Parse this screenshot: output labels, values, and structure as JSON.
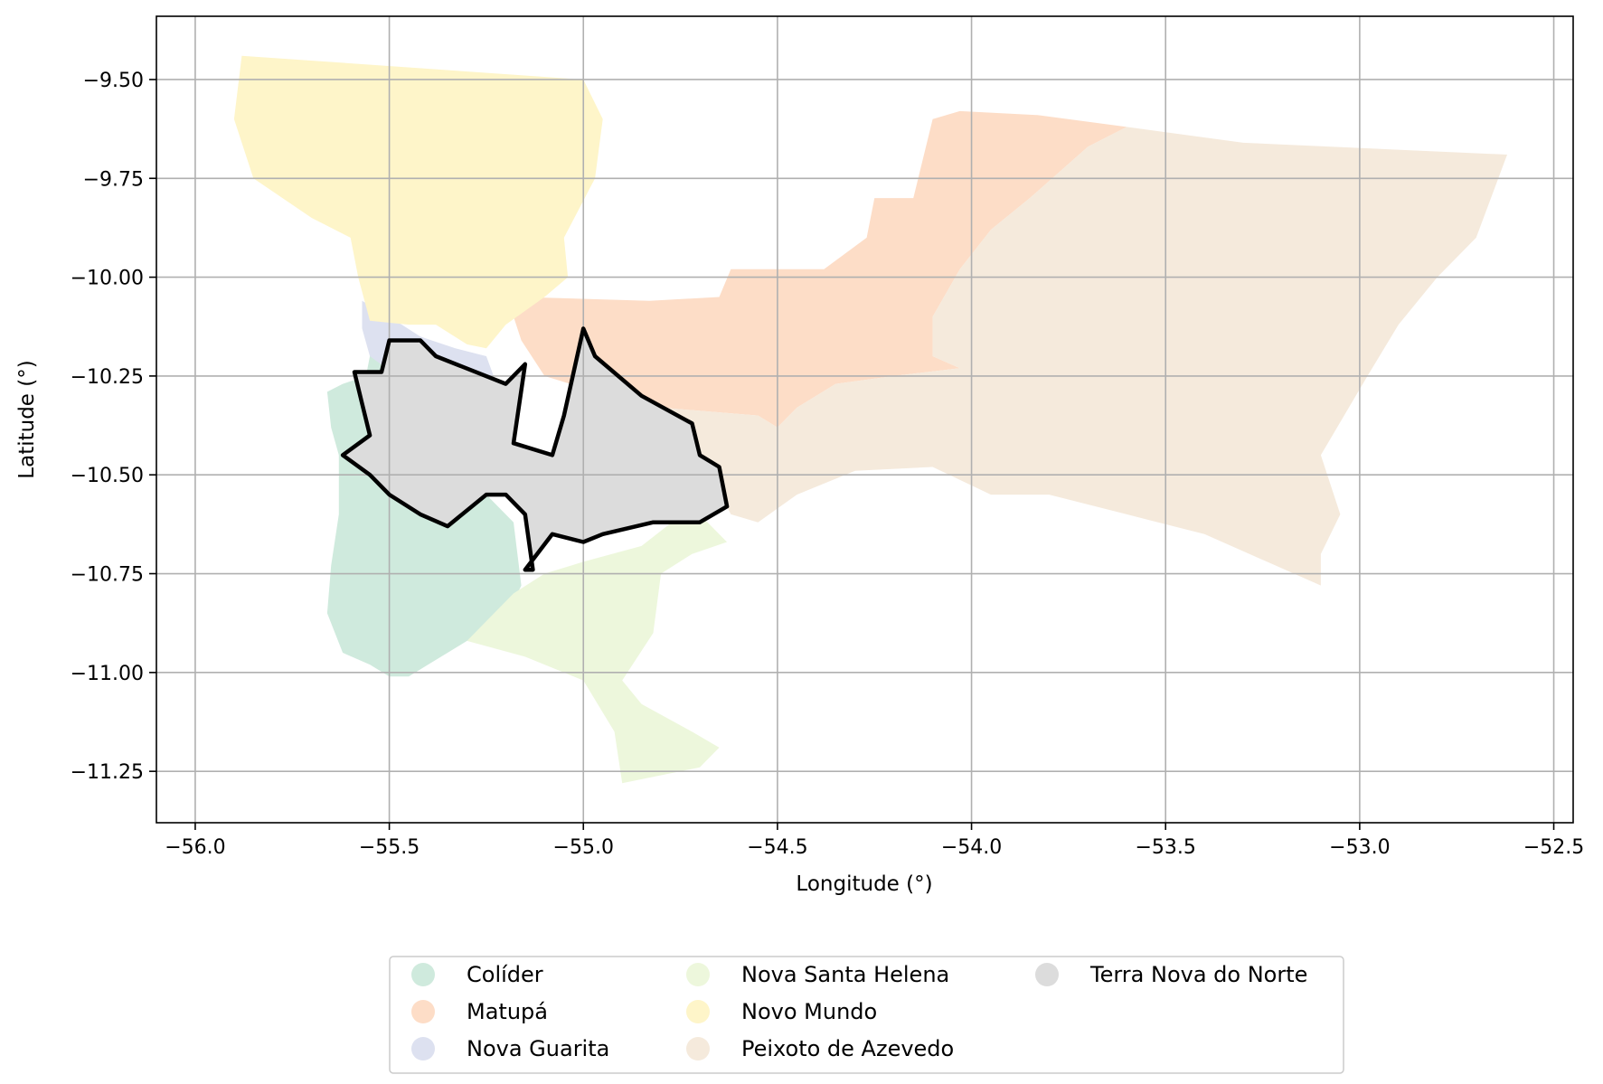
{
  "chart_data": {
    "type": "map",
    "xlabel": "Longitude (°)",
    "ylabel": "Latitude (°)",
    "xlim": [
      -56.1,
      -52.45
    ],
    "ylim": [
      -11.38,
      -9.34
    ],
    "grid": true,
    "legend_placement": "bottom-center",
    "xticks": [
      -56.0,
      -55.5,
      -55.0,
      -54.5,
      -54.0,
      -53.5,
      -53.0,
      -52.5
    ],
    "xtick_labels": [
      "−56.0",
      "−55.5",
      "−55.0",
      "−54.5",
      "−54.0",
      "−53.5",
      "−53.0",
      "−52.5"
    ],
    "yticks": [
      -9.5,
      -9.75,
      -10.0,
      -10.25,
      -10.5,
      -10.75,
      -11.0,
      -11.25
    ],
    "ytick_labels": [
      "−9.50",
      "−9.75",
      "−10.00",
      "−10.25",
      "−10.50",
      "−10.75",
      "−11.00",
      "−11.25"
    ],
    "highlighted_region": "Terra Nova do Norte",
    "regions": [
      {
        "name": "Colíder",
        "color": "#cfeadd",
        "polygon": [
          [
            -55.5,
            -10.16
          ],
          [
            -55.45,
            -10.22
          ],
          [
            -55.38,
            -10.28
          ],
          [
            -55.36,
            -10.35
          ],
          [
            -55.33,
            -10.42
          ],
          [
            -55.29,
            -10.49
          ],
          [
            -55.25,
            -10.55
          ],
          [
            -55.18,
            -10.62
          ],
          [
            -55.17,
            -10.7
          ],
          [
            -55.16,
            -10.78
          ],
          [
            -55.2,
            -10.86
          ],
          [
            -55.3,
            -10.92
          ],
          [
            -55.4,
            -10.98
          ],
          [
            -55.45,
            -11.01
          ],
          [
            -55.5,
            -11.01
          ],
          [
            -55.55,
            -10.98
          ],
          [
            -55.62,
            -10.95
          ],
          [
            -55.66,
            -10.85
          ],
          [
            -55.65,
            -10.73
          ],
          [
            -55.63,
            -10.6
          ],
          [
            -55.63,
            -10.45
          ],
          [
            -55.65,
            -10.38
          ],
          [
            -55.66,
            -10.29
          ],
          [
            -55.62,
            -10.27
          ],
          [
            -55.56,
            -10.25
          ],
          [
            -55.55,
            -10.2
          ],
          [
            -55.53,
            -10.14
          ]
        ]
      },
      {
        "name": "Matupá",
        "color": "#fdddc7",
        "polygon": [
          [
            -55.16,
            -10.05
          ],
          [
            -54.83,
            -10.06
          ],
          [
            -54.65,
            -10.05
          ],
          [
            -54.62,
            -9.98
          ],
          [
            -54.38,
            -9.98
          ],
          [
            -54.27,
            -9.9
          ],
          [
            -54.25,
            -9.8
          ],
          [
            -54.15,
            -9.8
          ],
          [
            -54.1,
            -9.6
          ],
          [
            -54.03,
            -9.58
          ],
          [
            -53.83,
            -9.59
          ],
          [
            -53.6,
            -9.62
          ],
          [
            -53.7,
            -9.67
          ],
          [
            -53.85,
            -9.8
          ],
          [
            -53.95,
            -9.88
          ],
          [
            -54.03,
            -9.98
          ],
          [
            -54.1,
            -10.1
          ],
          [
            -54.1,
            -10.2
          ],
          [
            -54.03,
            -10.23
          ],
          [
            -54.2,
            -10.25
          ],
          [
            -54.35,
            -10.27
          ],
          [
            -54.45,
            -10.33
          ],
          [
            -54.5,
            -10.38
          ],
          [
            -54.55,
            -10.35
          ],
          [
            -54.8,
            -10.33
          ],
          [
            -55.0,
            -10.28
          ],
          [
            -55.1,
            -10.25
          ],
          [
            -55.16,
            -10.16
          ],
          [
            -55.18,
            -10.1
          ]
        ]
      },
      {
        "name": "Nova Guarita",
        "color": "#dde1f0",
        "polygon": [
          [
            -55.57,
            -10.06
          ],
          [
            -55.5,
            -10.1
          ],
          [
            -55.42,
            -10.15
          ],
          [
            -55.33,
            -10.18
          ],
          [
            -55.25,
            -10.2
          ],
          [
            -55.22,
            -10.28
          ],
          [
            -55.2,
            -10.37
          ],
          [
            -55.18,
            -10.45
          ],
          [
            -55.25,
            -10.52
          ],
          [
            -55.32,
            -10.5
          ],
          [
            -55.41,
            -10.42
          ],
          [
            -55.44,
            -10.32
          ],
          [
            -55.48,
            -10.25
          ],
          [
            -55.55,
            -10.2
          ],
          [
            -55.57,
            -10.13
          ]
        ]
      },
      {
        "name": "Nova Santa Helena",
        "color": "#edf7dc",
        "polygon": [
          [
            -54.72,
            -10.58
          ],
          [
            -54.67,
            -10.63
          ],
          [
            -54.63,
            -10.67
          ],
          [
            -54.72,
            -10.7
          ],
          [
            -54.8,
            -10.75
          ],
          [
            -54.82,
            -10.9
          ],
          [
            -54.9,
            -11.02
          ],
          [
            -54.85,
            -11.08
          ],
          [
            -54.72,
            -11.15
          ],
          [
            -54.65,
            -11.19
          ],
          [
            -54.7,
            -11.24
          ],
          [
            -54.9,
            -11.28
          ],
          [
            -54.92,
            -11.15
          ],
          [
            -55.0,
            -11.02
          ],
          [
            -55.15,
            -10.96
          ],
          [
            -55.3,
            -10.92
          ],
          [
            -55.18,
            -10.8
          ],
          [
            -55.1,
            -10.75
          ],
          [
            -55.0,
            -10.72
          ],
          [
            -54.85,
            -10.68
          ]
        ]
      },
      {
        "name": "Novo Mundo",
        "color": "#fef5c9",
        "polygon": [
          [
            -55.88,
            -9.44
          ],
          [
            -55.0,
            -9.5
          ],
          [
            -54.95,
            -9.6
          ],
          [
            -54.97,
            -9.75
          ],
          [
            -55.05,
            -9.9
          ],
          [
            -55.04,
            -10.0
          ],
          [
            -55.1,
            -10.05
          ],
          [
            -55.2,
            -10.12
          ],
          [
            -55.25,
            -10.18
          ],
          [
            -55.3,
            -10.17
          ],
          [
            -55.38,
            -10.12
          ],
          [
            -55.45,
            -10.12
          ],
          [
            -55.55,
            -10.11
          ],
          [
            -55.58,
            -10.0
          ],
          [
            -55.6,
            -9.9
          ],
          [
            -55.7,
            -9.85
          ],
          [
            -55.85,
            -9.75
          ],
          [
            -55.9,
            -9.6
          ]
        ]
      },
      {
        "name": "Peixoto de Azevedo",
        "color": "#f5eadc",
        "polygon": [
          [
            -52.62,
            -9.69
          ],
          [
            -53.3,
            -9.66
          ],
          [
            -53.6,
            -9.62
          ],
          [
            -53.7,
            -9.67
          ],
          [
            -53.85,
            -9.8
          ],
          [
            -53.95,
            -9.88
          ],
          [
            -54.03,
            -9.98
          ],
          [
            -54.1,
            -10.1
          ],
          [
            -54.1,
            -10.2
          ],
          [
            -54.03,
            -10.23
          ],
          [
            -54.2,
            -10.25
          ],
          [
            -54.35,
            -10.27
          ],
          [
            -54.45,
            -10.33
          ],
          [
            -54.5,
            -10.38
          ],
          [
            -54.55,
            -10.35
          ],
          [
            -54.8,
            -10.33
          ],
          [
            -55.0,
            -10.28
          ],
          [
            -55.05,
            -10.35
          ],
          [
            -54.95,
            -10.42
          ],
          [
            -54.85,
            -10.43
          ],
          [
            -54.7,
            -10.45
          ],
          [
            -54.62,
            -10.6
          ],
          [
            -54.55,
            -10.62
          ],
          [
            -54.45,
            -10.55
          ],
          [
            -54.3,
            -10.49
          ],
          [
            -54.1,
            -10.48
          ],
          [
            -53.95,
            -10.55
          ],
          [
            -53.8,
            -10.55
          ],
          [
            -53.6,
            -10.6
          ],
          [
            -53.4,
            -10.65
          ],
          [
            -53.1,
            -10.78
          ],
          [
            -53.1,
            -10.7
          ],
          [
            -53.05,
            -10.6
          ],
          [
            -53.1,
            -10.45
          ],
          [
            -52.98,
            -10.25
          ],
          [
            -52.9,
            -10.12
          ],
          [
            -52.8,
            -10.0
          ],
          [
            -52.7,
            -9.9
          ]
        ]
      },
      {
        "name": "Terra Nova do Norte",
        "color": "#dcdcdc",
        "polygon": [
          [
            -55.5,
            -10.16
          ],
          [
            -55.42,
            -10.16
          ],
          [
            -55.38,
            -10.2
          ],
          [
            -55.2,
            -10.27
          ],
          [
            -55.15,
            -10.22
          ],
          [
            -55.18,
            -10.42
          ],
          [
            -55.08,
            -10.45
          ],
          [
            -55.05,
            -10.35
          ],
          [
            -55.0,
            -10.13
          ],
          [
            -54.97,
            -10.2
          ],
          [
            -54.85,
            -10.3
          ],
          [
            -54.72,
            -10.37
          ],
          [
            -54.7,
            -10.45
          ],
          [
            -54.65,
            -10.48
          ],
          [
            -54.63,
            -10.58
          ],
          [
            -54.7,
            -10.62
          ],
          [
            -54.82,
            -10.62
          ],
          [
            -54.95,
            -10.65
          ],
          [
            -55.0,
            -10.67
          ],
          [
            -55.08,
            -10.65
          ],
          [
            -55.15,
            -10.74
          ],
          [
            -55.13,
            -10.74
          ],
          [
            -55.15,
            -10.6
          ],
          [
            -55.2,
            -10.55
          ],
          [
            -55.25,
            -10.55
          ],
          [
            -55.35,
            -10.63
          ],
          [
            -55.42,
            -10.6
          ],
          [
            -55.5,
            -10.55
          ],
          [
            -55.55,
            -10.5
          ],
          [
            -55.62,
            -10.45
          ],
          [
            -55.55,
            -10.4
          ],
          [
            -55.57,
            -10.32
          ],
          [
            -55.59,
            -10.24
          ],
          [
            -55.52,
            -10.24
          ]
        ]
      }
    ]
  },
  "legend": {
    "items": [
      {
        "name": "Colíder",
        "color": "#cfeadd"
      },
      {
        "name": "Matupá",
        "color": "#fdddc7"
      },
      {
        "name": "Nova Guarita",
        "color": "#dde1f0"
      },
      {
        "name": "Nova Santa Helena",
        "color": "#edf7dc"
      },
      {
        "name": "Novo Mundo",
        "color": "#fef5c9"
      },
      {
        "name": "Peixoto de Azevedo",
        "color": "#f5eadc"
      },
      {
        "name": "Terra Nova do Norte",
        "color": "#dcdcdc"
      }
    ]
  }
}
